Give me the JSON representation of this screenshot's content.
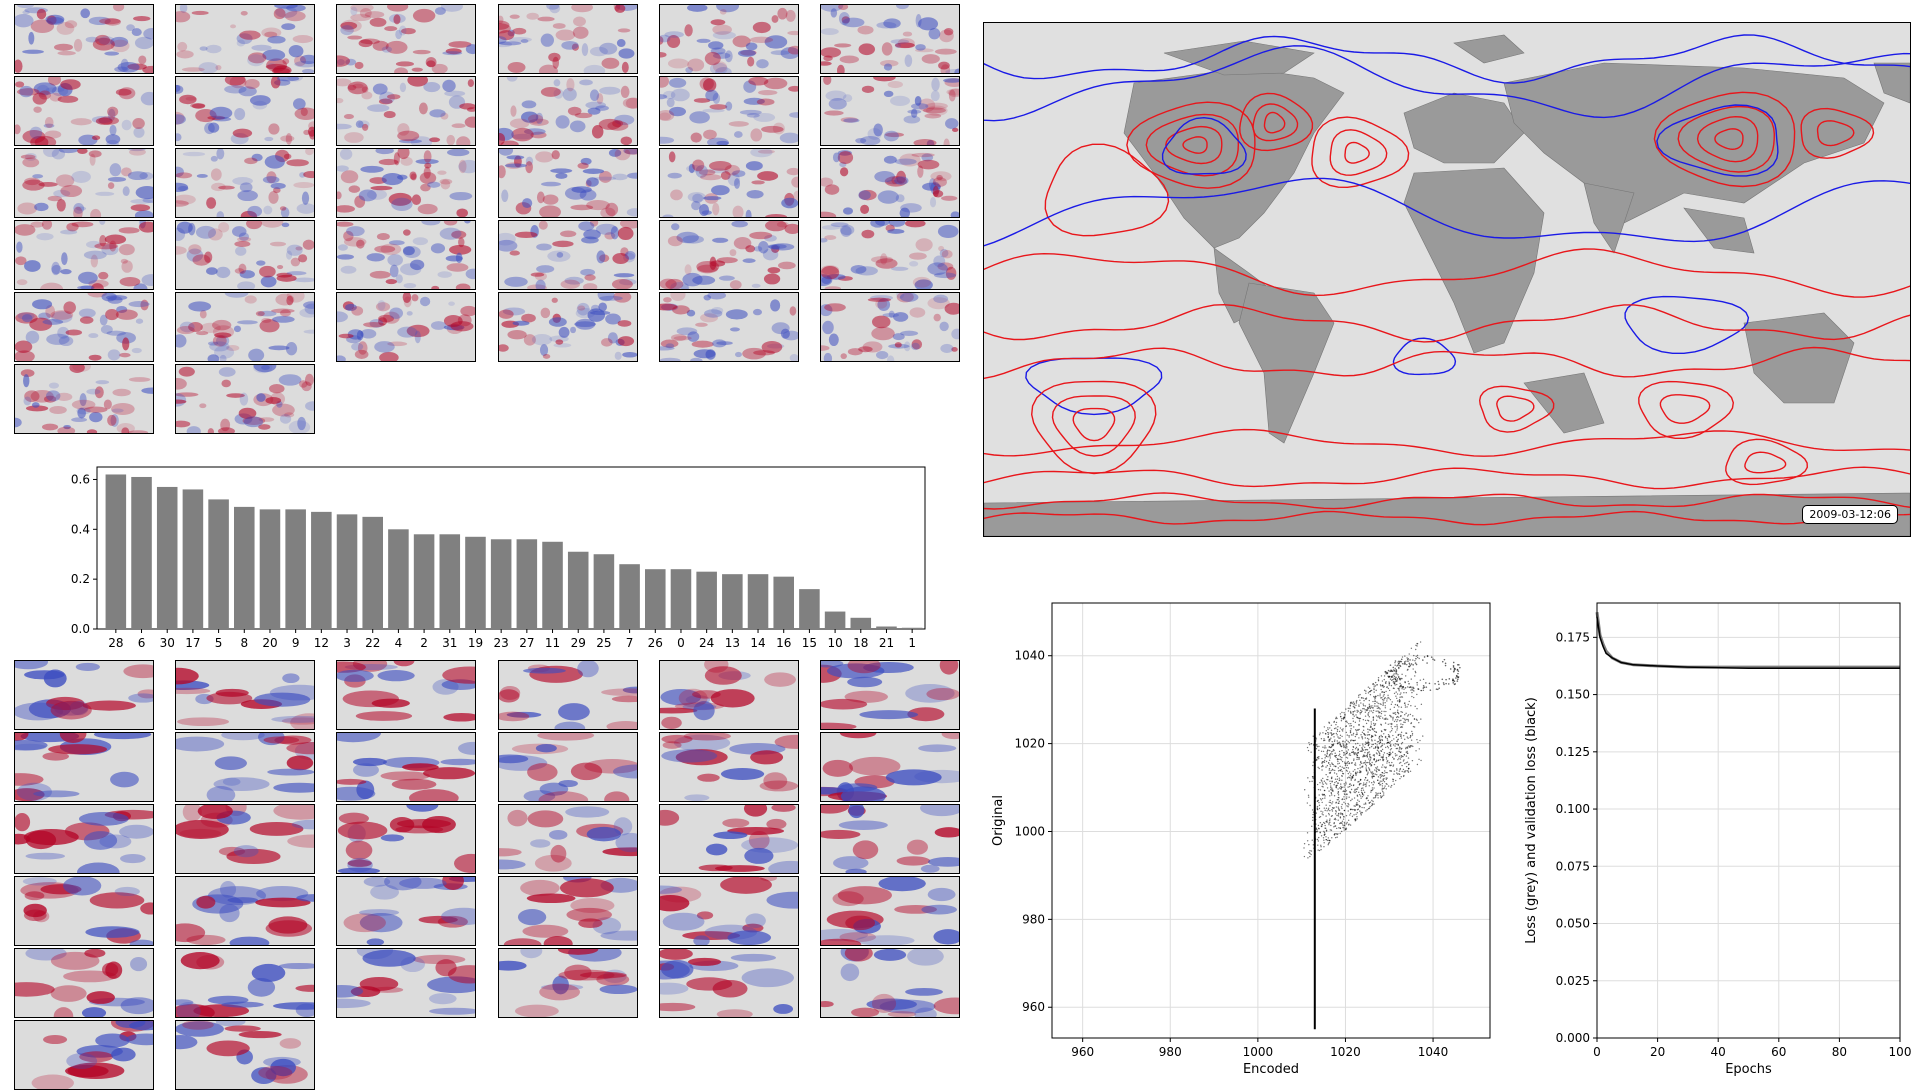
{
  "colors": {
    "neg": "#3b4cc0",
    "pos": "#b40426",
    "bar": "#808080",
    "land": "#9a9a9a",
    "sea": "#e0e0e0",
    "contour_red": "#e8161b",
    "contour_blue": "#1a1ae6"
  },
  "top_grid": {
    "rows": [
      6,
      6,
      6,
      6,
      6,
      2
    ]
  },
  "bottom_grid": {
    "rows": [
      6,
      6,
      6,
      6,
      6,
      2
    ]
  },
  "map": {
    "timestamp": "2009-03-12:06"
  },
  "chart_data": [
    {
      "type": "bar",
      "categories": [
        "28",
        "6",
        "30",
        "17",
        "5",
        "8",
        "20",
        "9",
        "12",
        "3",
        "22",
        "4",
        "2",
        "31",
        "19",
        "23",
        "27",
        "11",
        "29",
        "25",
        "7",
        "26",
        "0",
        "24",
        "13",
        "14",
        "16",
        "15",
        "10",
        "18",
        "21",
        "1"
      ],
      "values": [
        0.62,
        0.61,
        0.57,
        0.56,
        0.52,
        0.49,
        0.48,
        0.48,
        0.47,
        0.46,
        0.45,
        0.4,
        0.38,
        0.38,
        0.37,
        0.36,
        0.36,
        0.35,
        0.31,
        0.3,
        0.26,
        0.24,
        0.24,
        0.23,
        0.22,
        0.22,
        0.21,
        0.16,
        0.07,
        0.045,
        0.01,
        0.005
      ],
      "ylim": [
        0,
        0.65
      ],
      "yticks": [
        "0.0",
        "0.2",
        "0.4",
        "0.6"
      ],
      "xlabel": "",
      "ylabel": ""
    },
    {
      "type": "scatter",
      "xlabel": "Encoded",
      "ylabel": "Original",
      "xlim": [
        953,
        1053
      ],
      "ylim": [
        953,
        1052
      ],
      "xticks": [
        "960",
        "980",
        "1000",
        "1020",
        "1040"
      ],
      "yticks": [
        "960",
        "980",
        "1000",
        "1020",
        "1040"
      ],
      "grid": true,
      "cluster": {
        "x_center": 1019,
        "y_center": 1015
      },
      "vertical_line": {
        "x": 1013,
        "y_from": 955,
        "y_to": 1028
      }
    },
    {
      "type": "line",
      "xlabel": "Epochs",
      "ylabel": "Loss (grey) and validation loss (black)",
      "xlim": [
        0,
        100
      ],
      "ylim": [
        0,
        0.19
      ],
      "xticks": [
        "0",
        "20",
        "40",
        "60",
        "80",
        "100"
      ],
      "yticks": [
        "0.000",
        "0.025",
        "0.050",
        "0.075",
        "0.100",
        "0.125",
        "0.150",
        "0.175"
      ],
      "grid": true,
      "series": [
        {
          "color": "grey",
          "x": [
            0,
            1,
            2,
            3,
            5,
            8,
            12,
            20,
            30,
            50,
            100
          ],
          "y": [
            0.186,
            0.176,
            0.172,
            0.169,
            0.166,
            0.164,
            0.163,
            0.1625,
            0.162,
            0.162,
            0.162
          ]
        },
        {
          "color": "black",
          "x": [
            0,
            1,
            2,
            3,
            5,
            8,
            12,
            20,
            30,
            50,
            100
          ],
          "y": [
            0.184,
            0.175,
            0.171,
            0.168,
            0.166,
            0.164,
            0.163,
            0.1625,
            0.162,
            0.1615,
            0.1615
          ]
        }
      ]
    }
  ]
}
